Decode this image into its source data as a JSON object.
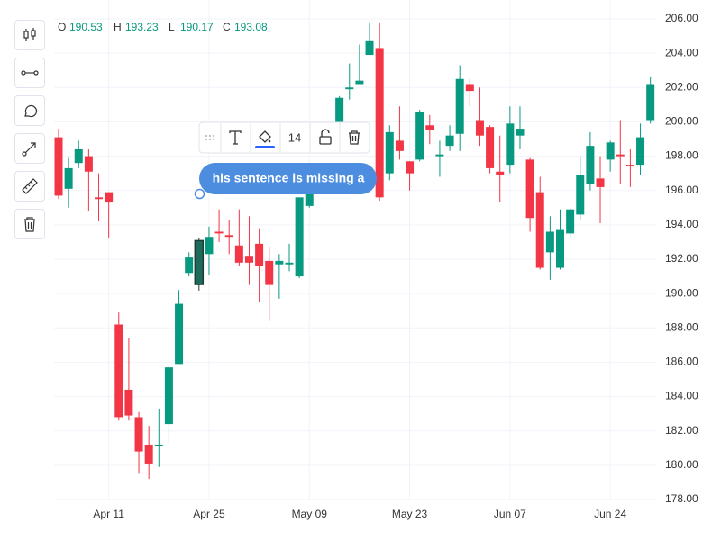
{
  "chart_data": {
    "type": "candlestick",
    "categories": [
      null,
      null,
      null,
      null,
      null,
      "Apr 11",
      null,
      null,
      null,
      null,
      null,
      null,
      null,
      null,
      null,
      "Apr 25",
      null,
      null,
      null,
      null,
      null,
      null,
      null,
      null,
      null,
      "May 09",
      null,
      null,
      null,
      null,
      null,
      null,
      null,
      null,
      null,
      "May 23",
      null,
      null,
      null,
      null,
      null,
      null,
      null,
      null,
      null,
      "Jun 07",
      null,
      null,
      null,
      null,
      null,
      null,
      null,
      null,
      null,
      "Jun 24",
      null,
      null,
      null,
      null
    ],
    "open": [
      199.1,
      196.1,
      197.6,
      198.0,
      195.6,
      195.9,
      188.2,
      184.4,
      182.8,
      181.2,
      181.1,
      182.4,
      185.9,
      191.2,
      190.53,
      192.3,
      193.6,
      193.4,
      192.8,
      192.2,
      192.9,
      191.9,
      191.7,
      191.7,
      191.0,
      195.1,
      196.2,
      196.8,
      199.8,
      201.9,
      202.2,
      203.9,
      204.3,
      197.0,
      198.9,
      197.7,
      197.8,
      199.8,
      198.0,
      198.6,
      199.3,
      202.2,
      200.1,
      199.7,
      197.1,
      197.5,
      199.2,
      197.8,
      195.9,
      192.4,
      191.5,
      193.5,
      194.6,
      196.4,
      196.7,
      197.8,
      198.1,
      197.5,
      197.5,
      200.1
    ],
    "high": [
      199.6,
      197.9,
      198.9,
      198.4,
      197.0,
      195.9,
      188.9,
      187.4,
      183.1,
      182.3,
      183.3,
      185.9,
      190.2,
      192.4,
      193.23,
      193.9,
      194.9,
      194.3,
      194.9,
      194.5,
      193.8,
      192.7,
      192.3,
      192.9,
      195.6,
      196.0,
      197.0,
      197.6,
      201.5,
      203.4,
      204.5,
      205.8,
      205.8,
      199.8,
      200.9,
      197.7,
      200.7,
      200.4,
      198.9,
      199.8,
      203.3,
      202.5,
      202.0,
      199.8,
      199.2,
      200.9,
      200.9,
      197.9,
      196.8,
      194.5,
      194.9,
      195.0,
      198.0,
      199.4,
      198.0,
      198.9,
      200.1,
      198.4,
      199.9,
      202.6
    ],
    "low": [
      195.5,
      195.0,
      197.3,
      194.8,
      194.2,
      193.2,
      182.6,
      182.6,
      179.5,
      179.2,
      179.9,
      181.3,
      185.9,
      191.0,
      190.17,
      191.1,
      193.0,
      192.3,
      191.6,
      190.5,
      189.5,
      188.4,
      189.7,
      191.3,
      190.9,
      195.0,
      195.9,
      196.5,
      199.7,
      201.3,
      202.2,
      203.9,
      195.4,
      196.6,
      197.8,
      196.0,
      197.7,
      198.7,
      196.8,
      198.3,
      198.3,
      200.9,
      198.6,
      197.0,
      195.3,
      197.0,
      198.4,
      193.6,
      191.4,
      190.8,
      191.4,
      193.2,
      194.3,
      196.0,
      194.1,
      197.1,
      196.4,
      196.2,
      196.9,
      199.9
    ],
    "close": [
      195.7,
      197.3,
      198.4,
      197.1,
      195.5,
      195.3,
      182.8,
      182.9,
      180.8,
      180.1,
      181.2,
      185.7,
      189.4,
      192.1,
      193.08,
      193.3,
      193.5,
      193.3,
      191.8,
      191.8,
      191.6,
      190.5,
      191.9,
      191.8,
      195.6,
      195.9,
      196.8,
      197.4,
      201.4,
      202.0,
      202.4,
      204.7,
      195.6,
      199.4,
      198.3,
      197.0,
      200.6,
      199.5,
      198.1,
      199.2,
      202.5,
      201.8,
      199.2,
      197.3,
      196.9,
      199.9,
      199.6,
      194.4,
      191.5,
      193.6,
      193.7,
      194.9,
      196.9,
      198.6,
      196.2,
      198.8,
      198.0,
      197.4,
      199.1,
      202.2
    ],
    "up_color": "#089981",
    "down_color": "#f23645",
    "selected": 14,
    "ohlc_labels": [
      "O",
      "H",
      "L",
      "C"
    ],
    "ylim": [
      178,
      206
    ],
    "yticks": [
      {
        "value": 178,
        "label": "178.00"
      },
      {
        "value": 180,
        "label": "180.00"
      },
      {
        "value": 182,
        "label": "182.00"
      },
      {
        "value": 184,
        "label": "184.00"
      },
      {
        "value": 186,
        "label": "186.00"
      },
      {
        "value": 188,
        "label": "188.00"
      },
      {
        "value": 190,
        "label": "190.00"
      },
      {
        "value": 192,
        "label": "192.00"
      },
      {
        "value": 194,
        "label": "194.00"
      },
      {
        "value": 196,
        "label": "196.00"
      },
      {
        "value": 198,
        "label": "198.00"
      },
      {
        "value": 200,
        "label": "200.00"
      },
      {
        "value": 202,
        "label": "202.00"
      },
      {
        "value": 204,
        "label": "204.00"
      },
      {
        "value": 206,
        "label": "206.00"
      }
    ],
    "grid": true,
    "annotation": {
      "text": "his sentence is missing a"
    },
    "annotation_toolbar": {
      "font_size": 14
    }
  }
}
